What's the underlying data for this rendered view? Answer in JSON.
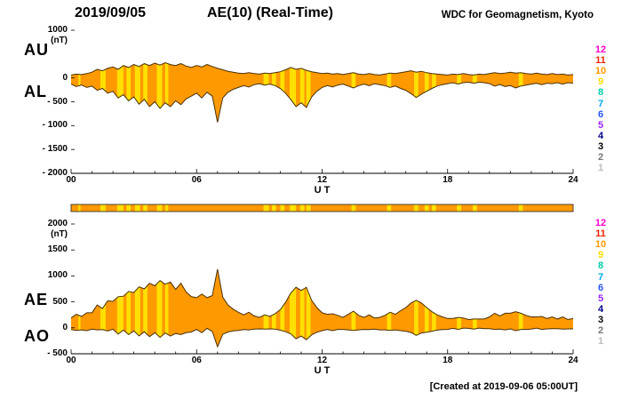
{
  "header": {
    "date": "2019/09/05",
    "title": "AE(10) (Real-Time)",
    "source": "WDC for Geomagnetism, Kyoto"
  },
  "footer": {
    "created_note": "[Created at 2019-09-06 05:00UT]"
  },
  "axis": {
    "ut_label": "U T",
    "x_ticks": [
      "00",
      "06",
      "12",
      "18",
      "24"
    ]
  },
  "panel_top": {
    "labels": [
      "AU",
      "AL"
    ],
    "unit": "(nT)",
    "y_tick_labels": [
      "1000",
      "0",
      "- 500",
      "- 1000",
      "- 1500",
      "- 2000"
    ],
    "y_tick_values": [
      1000,
      0,
      -500,
      -1000,
      -1500,
      -2000
    ]
  },
  "panel_bottom": {
    "labels": [
      "AE",
      "AO"
    ],
    "unit": "(nT)",
    "y_tick_labels": [
      "2000",
      "1500",
      "1000",
      "500",
      "0",
      "- 500"
    ],
    "y_tick_values": [
      2000,
      1500,
      1000,
      500,
      0,
      -500
    ]
  },
  "legend": {
    "items": [
      {
        "label": "12",
        "color": "#ff00cc"
      },
      {
        "label": "11",
        "color": "#ee2200"
      },
      {
        "label": "10",
        "color": "#ff9900"
      },
      {
        "label": "9",
        "color": "#ffdd00"
      },
      {
        "label": "8",
        "color": "#00ccaa"
      },
      {
        "label": "7",
        "color": "#00aaee"
      },
      {
        "label": "6",
        "color": "#2255ee"
      },
      {
        "label": "5",
        "color": "#9922ff"
      },
      {
        "label": "4",
        "color": "#000088"
      },
      {
        "label": "3",
        "color": "#000000"
      },
      {
        "label": "2",
        "color": "#777777"
      },
      {
        "label": "1",
        "color": "#bbbbbb"
      }
    ]
  },
  "colors": {
    "fill": "#ff9900",
    "stripe": "#ffe000",
    "outline": "#4a3000",
    "axis": "#000000"
  },
  "station_bar": {
    "stripes_hours": [
      [
        0.35,
        0.45
      ],
      [
        1.4,
        1.65
      ],
      [
        2.2,
        2.5
      ],
      [
        2.65,
        2.85
      ],
      [
        3.05,
        3.3
      ],
      [
        3.45,
        3.65
      ],
      [
        4.1,
        4.35
      ],
      [
        4.5,
        4.65
      ],
      [
        9.2,
        9.45
      ],
      [
        9.6,
        9.8
      ],
      [
        10.0,
        10.2
      ],
      [
        10.45,
        10.75
      ],
      [
        10.95,
        11.15
      ],
      [
        11.25,
        11.45
      ],
      [
        13.4,
        13.6
      ],
      [
        15.1,
        15.3
      ],
      [
        16.4,
        16.6
      ],
      [
        16.9,
        17.1
      ],
      [
        17.25,
        17.45
      ],
      [
        18.45,
        18.65
      ],
      [
        19.2,
        19.4
      ],
      [
        21.4,
        21.6
      ]
    ]
  },
  "chart_data": [
    {
      "type": "area",
      "title": "AU and AL indices",
      "xlabel": "U T",
      "ylabel": "nT",
      "xlim": [
        0,
        24
      ],
      "ylim": [
        -2000,
        1000
      ],
      "x_hours_step": 0.25,
      "series": [
        {
          "name": "AU",
          "values": [
            60,
            80,
            70,
            90,
            120,
            180,
            150,
            200,
            230,
            180,
            260,
            220,
            280,
            240,
            300,
            260,
            310,
            270,
            320,
            280,
            260,
            300,
            250,
            220,
            260,
            230,
            280,
            240,
            200,
            170,
            140,
            120,
            100,
            90,
            110,
            90,
            80,
            100,
            90,
            110,
            130,
            170,
            220,
            180,
            200,
            160,
            130,
            110,
            90,
            100,
            80,
            90,
            70,
            90,
            110,
            80,
            70,
            90,
            70,
            60,
            80,
            100,
            90,
            110,
            130,
            150,
            120,
            140,
            110,
            90,
            80,
            70,
            60,
            80,
            70,
            90,
            70,
            60,
            80,
            70,
            90,
            110,
            90,
            100,
            120,
            100,
            110,
            90,
            80,
            100,
            80,
            70,
            90,
            70,
            80,
            60,
            70
          ]
        },
        {
          "name": "AL",
          "values": [
            -130,
            -180,
            -150,
            -200,
            -170,
            -260,
            -220,
            -320,
            -280,
            -420,
            -350,
            -480,
            -400,
            -550,
            -450,
            -600,
            -500,
            -640,
            -520,
            -600,
            -480,
            -560,
            -440,
            -380,
            -320,
            -420,
            -300,
            -380,
            -930,
            -420,
            -300,
            -240,
            -200,
            -160,
            -190,
            -140,
            -120,
            -150,
            -130,
            -160,
            -220,
            -320,
            -450,
            -600,
            -520,
            -620,
            -400,
            -280,
            -200,
            -160,
            -190,
            -150,
            -130,
            -170,
            -210,
            -160,
            -130,
            -160,
            -120,
            -140,
            -160,
            -200,
            -170,
            -220,
            -260,
            -330,
            -410,
            -340,
            -280,
            -220,
            -170,
            -140,
            -120,
            -100,
            -130,
            -100,
            -90,
            -110,
            -90,
            -100,
            -120,
            -170,
            -140,
            -180,
            -160,
            -210,
            -170,
            -150,
            -130,
            -110,
            -140,
            -110,
            -120,
            -100,
            -130,
            -100,
            -110
          ]
        }
      ]
    },
    {
      "type": "area",
      "title": "AE and AO indices",
      "xlabel": "U T",
      "ylabel": "nT",
      "xlim": [
        0,
        24
      ],
      "ylim": [
        -500,
        2000
      ],
      "x_hours_step": 0.25,
      "series": [
        {
          "name": "AE",
          "values": [
            190,
            260,
            220,
            290,
            290,
            440,
            370,
            520,
            510,
            600,
            610,
            700,
            680,
            790,
            750,
            860,
            810,
            910,
            840,
            880,
            740,
            860,
            690,
            600,
            580,
            650,
            580,
            620,
            1130,
            590,
            440,
            360,
            300,
            250,
            300,
            230,
            200,
            250,
            220,
            270,
            350,
            490,
            670,
            780,
            720,
            780,
            530,
            390,
            290,
            260,
            270,
            240,
            200,
            260,
            320,
            240,
            200,
            250,
            190,
            200,
            240,
            300,
            260,
            330,
            390,
            480,
            530,
            480,
            390,
            310,
            250,
            210,
            180,
            180,
            200,
            190,
            160,
            170,
            170,
            170,
            210,
            280,
            230,
            280,
            280,
            310,
            280,
            240,
            210,
            210,
            220,
            180,
            210,
            170,
            210,
            160,
            180
          ]
        },
        {
          "name": "AO",
          "values": [
            -35,
            -50,
            -40,
            -55,
            -25,
            -40,
            -35,
            -60,
            -25,
            -120,
            -45,
            -130,
            -60,
            -155,
            -75,
            -170,
            -95,
            -185,
            -100,
            -160,
            -110,
            -130,
            -95,
            -80,
            -30,
            -95,
            -10,
            -70,
            -365,
            -125,
            -80,
            -60,
            -50,
            -35,
            -40,
            -25,
            -20,
            -25,
            -20,
            -25,
            -45,
            -75,
            -115,
            -210,
            -160,
            -230,
            -135,
            -85,
            -55,
            -30,
            -55,
            -30,
            -30,
            -40,
            -50,
            -40,
            -30,
            -35,
            -25,
            -40,
            -40,
            -50,
            -40,
            -55,
            -65,
            -90,
            -145,
            -100,
            -85,
            -65,
            -45,
            -35,
            -30,
            -10,
            -30,
            -5,
            -10,
            -25,
            -5,
            -15,
            -15,
            -30,
            -25,
            -40,
            -20,
            -55,
            -30,
            -30,
            -25,
            -5,
            -30,
            -20,
            -15,
            -15,
            -25,
            -20,
            -20
          ]
        }
      ]
    }
  ]
}
